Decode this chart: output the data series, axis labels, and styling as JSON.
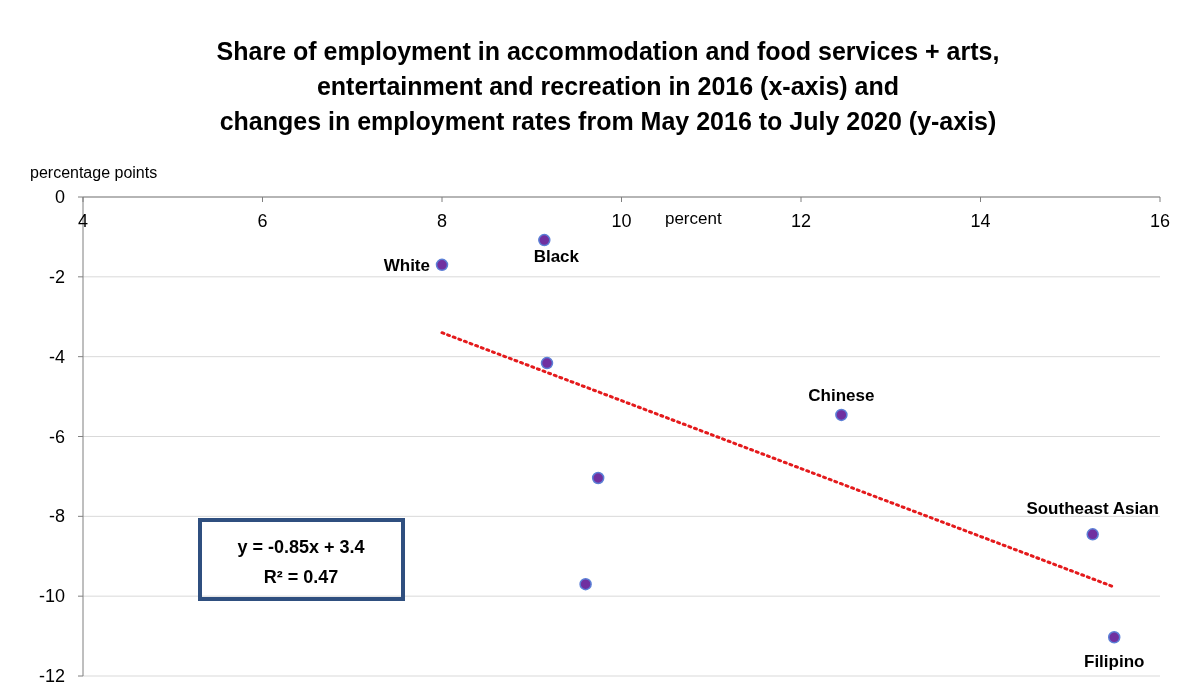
{
  "chart_data": {
    "type": "scatter",
    "title": "Share of employment in accommodation and food services + arts,\nentertainment and recreation in 2016 (x-axis) and\nchanges in employment rates from May 2016 to July 2020 (y-axis)",
    "xlabel": "percent",
    "ylabel": "percentage points",
    "series": [
      {
        "color": "#7030a0",
        "marker": "circle",
        "x": [
          8.0,
          9.14,
          9.17,
          9.74,
          9.6,
          12.45,
          15.25,
          15.49
        ],
        "values": [
          -1.7,
          -1.08,
          -4.16,
          -7.04,
          -9.7,
          -5.46,
          -8.45,
          -11.03
        ]
      },
      {
        "type": "line",
        "color": "#e41a1c",
        "line_style": "dotted",
        "marker": "none",
        "x": [
          8,
          15.5
        ],
        "values": [
          -3.4,
          -9.78
        ]
      }
    ],
    "annotations": [
      {
        "text": "White",
        "x": 8.0,
        "y": -1.7
      },
      {
        "text": "Black",
        "x": 9.14,
        "y": -1.08
      },
      {
        "text": "Chinese",
        "x": 12.45,
        "y": -5.46
      },
      {
        "text": "Southeast Asian",
        "x": 15.25,
        "y": -8.45
      },
      {
        "text": "Filipino",
        "x": 15.49,
        "y": -11.03
      },
      "y = -0.85x + 3.4",
      "R² = 0.47"
    ],
    "xlim": [
      4,
      16
    ],
    "xticks": [
      4,
      6,
      8,
      10,
      12,
      14,
      16
    ],
    "ylim": [
      -12,
      0
    ],
    "yticks": [
      0,
      -2,
      -4,
      -6,
      -8,
      -10,
      -12
    ],
    "grid": "y"
  }
}
